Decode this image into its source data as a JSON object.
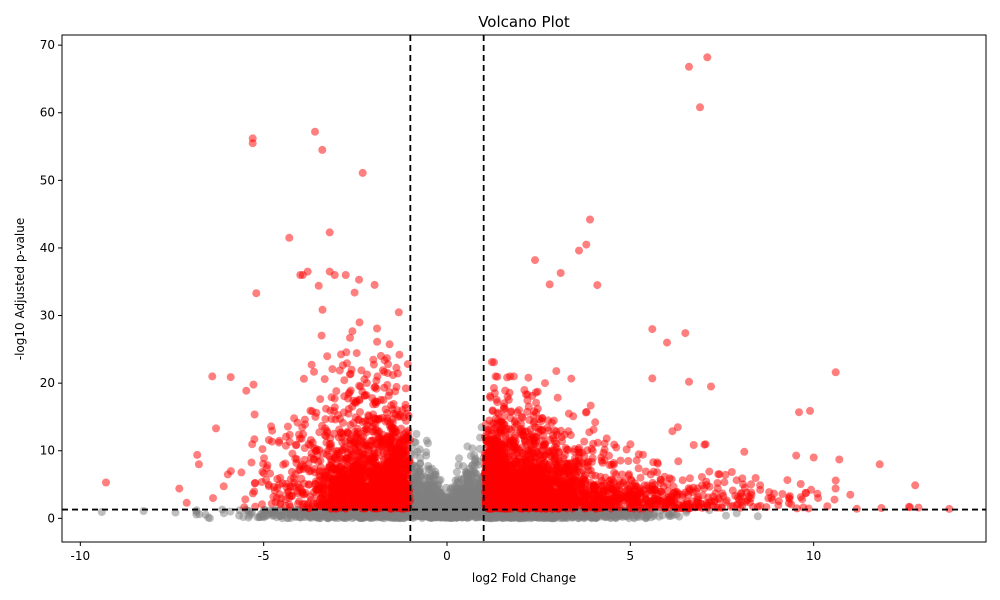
{
  "chart_data": {
    "type": "scatter",
    "title": "Volcano Plot",
    "xlabel": "log2 Fold Change",
    "ylabel": "-log10 Adjusted p-value",
    "xlim": [
      -10.5,
      14.7
    ],
    "ylim": [
      -3.5,
      71.5
    ],
    "xticks": [
      -10,
      -5,
      0,
      5,
      10
    ],
    "yticks": [
      0,
      10,
      20,
      30,
      40,
      50,
      60,
      70
    ],
    "thresholds": {
      "log2fc": [
        -1,
        1
      ],
      "neg_log10_padj": 1.3
    },
    "colors": {
      "significant": "#ff0000",
      "not_significant": "#808080",
      "threshold_line": "#000000"
    },
    "grid": false,
    "legend": "none",
    "highlight_points": [
      [
        7.1,
        68.2
      ],
      [
        6.6,
        66.8
      ],
      [
        6.9,
        60.8
      ],
      [
        -3.6,
        57.2
      ],
      [
        -5.3,
        56.2
      ],
      [
        -5.3,
        55.5
      ],
      [
        -3.4,
        54.5
      ],
      [
        -2.3,
        51.1
      ],
      [
        3.9,
        44.2
      ],
      [
        -3.2,
        42.3
      ],
      [
        -4.3,
        41.5
      ],
      [
        3.8,
        40.5
      ],
      [
        3.6,
        39.6
      ],
      [
        2.4,
        38.2
      ],
      [
        3.1,
        36.3
      ],
      [
        -3.8,
        36.5
      ],
      [
        -4.0,
        36.0
      ],
      [
        -3.2,
        36.5
      ],
      [
        -2.4,
        35.3
      ],
      [
        4.1,
        34.5
      ],
      [
        2.8,
        34.6
      ],
      [
        -3.5,
        34.4
      ],
      [
        -5.2,
        33.3
      ],
      [
        10.6,
        21.6
      ],
      [
        11.8,
        8.0
      ],
      [
        13.7,
        1.4
      ],
      [
        12.6,
        1.7
      ],
      [
        -9.3,
        5.3
      ],
      [
        -7.3,
        4.4
      ],
      [
        -7.1,
        2.3
      ],
      [
        -6.3,
        13.3
      ],
      [
        -6.4,
        21.0
      ],
      [
        -5.9,
        20.9
      ],
      [
        -5.5,
        2.8
      ],
      [
        6.5,
        27.4
      ],
      [
        5.6,
        28.0
      ],
      [
        6.0,
        26.0
      ],
      [
        5.6,
        20.7
      ],
      [
        6.6,
        20.2
      ],
      [
        7.2,
        19.5
      ],
      [
        9.9,
        15.9
      ],
      [
        9.6,
        15.7
      ],
      [
        10.0,
        9.0
      ],
      [
        10.6,
        5.6
      ],
      [
        10.7,
        8.7
      ],
      [
        11.0,
        3.5
      ]
    ]
  }
}
